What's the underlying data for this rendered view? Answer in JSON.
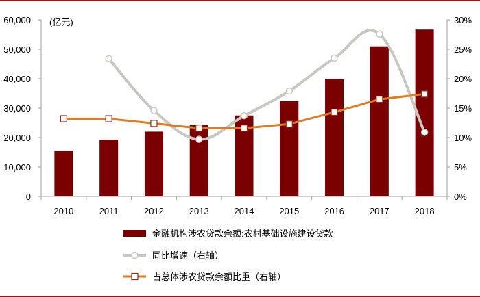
{
  "chart_data": {
    "type": "bar",
    "categories": [
      "2010",
      "2011",
      "2012",
      "2013",
      "2014",
      "2015",
      "2016",
      "2017",
      "2018"
    ],
    "series": [
      {
        "name": "金融机构涉农贷款余额:农村基础设施建设贷款",
        "kind": "bar",
        "axis": "left",
        "color": "#7b0000",
        "values": [
          15500,
          19200,
          22000,
          24200,
          27500,
          32400,
          40000,
          51000,
          56700
        ]
      },
      {
        "name": "同比增速（右轴）",
        "kind": "line",
        "axis": "right",
        "color": "#c8c8c0",
        "marker": "circle",
        "values": [
          null,
          23.4,
          14.6,
          9.7,
          13.7,
          17.9,
          23.5,
          27.6,
          10.9
        ]
      },
      {
        "name": "占总体涉农贷款余额比重（右轴）",
        "kind": "line",
        "axis": "right",
        "color": "#e07b24",
        "marker": "square",
        "values": [
          13.2,
          13.2,
          12.4,
          11.6,
          11.6,
          12.3,
          14.3,
          16.5,
          17.4
        ]
      }
    ],
    "y_left": {
      "unit_label": "(亿元)",
      "ylim": [
        0,
        60000
      ],
      "ticks": [
        "0",
        "10,000",
        "20,000",
        "30,000",
        "40,000",
        "50,000",
        "60,000"
      ]
    },
    "y_right": {
      "ylim": [
        0,
        30
      ],
      "ticks": [
        "0%",
        "5%",
        "10%",
        "15%",
        "20%",
        "25%",
        "30%"
      ]
    },
    "grid": false,
    "legend_position": "bottom"
  }
}
